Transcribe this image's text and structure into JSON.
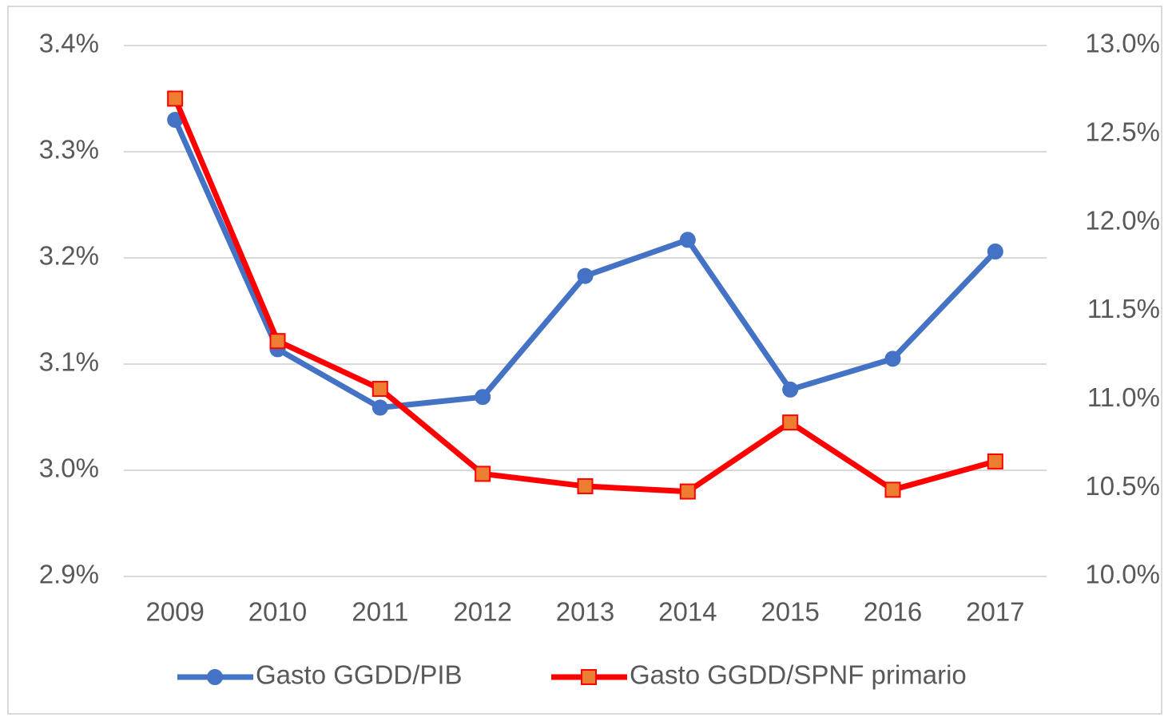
{
  "chart_data": {
    "type": "line",
    "categories": [
      "2009",
      "2010",
      "2011",
      "2012",
      "2013",
      "2014",
      "2015",
      "2016",
      "2017"
    ],
    "series": [
      {
        "name": "Gasto GGDD/PIB",
        "color": "#4472c4",
        "marker": "circle",
        "values": [
          3.33,
          3.114,
          3.059,
          3.069,
          3.183,
          3.217,
          3.076,
          3.105,
          3.206
        ]
      },
      {
        "name": "Gasto GGDD/SPNF primario",
        "color": "#ff0000",
        "marker": "square",
        "marker_fill": "#ed7d31",
        "axis": "y2",
        "values": [
          12.7,
          11.33,
          11.06,
          10.58,
          10.51,
          10.48,
          10.87,
          10.49,
          10.65
        ]
      }
    ],
    "ylim": [
      2.9,
      3.4
    ],
    "yticks": [
      {
        "value": 2.9,
        "label": "2.9%"
      },
      {
        "value": 3.0,
        "label": "3.0%"
      },
      {
        "value": 3.1,
        "label": "3.1%"
      },
      {
        "value": 3.2,
        "label": "3.2%"
      },
      {
        "value": 3.3,
        "label": "3.3%"
      },
      {
        "value": 3.4,
        "label": "3.4%"
      }
    ],
    "y2lim": [
      10.0,
      13.0
    ],
    "y2ticks": [
      {
        "value": 10.0,
        "label": "10.0%"
      },
      {
        "value": 10.5,
        "label": "10.5%"
      },
      {
        "value": 11.0,
        "label": "11.0%"
      },
      {
        "value": 11.5,
        "label": "11.5%"
      },
      {
        "value": 12.0,
        "label": "12.0%"
      },
      {
        "value": 12.5,
        "label": "12.5%"
      },
      {
        "value": 13.0,
        "label": "13.0%"
      }
    ],
    "grid": true,
    "legend": "bottom"
  }
}
